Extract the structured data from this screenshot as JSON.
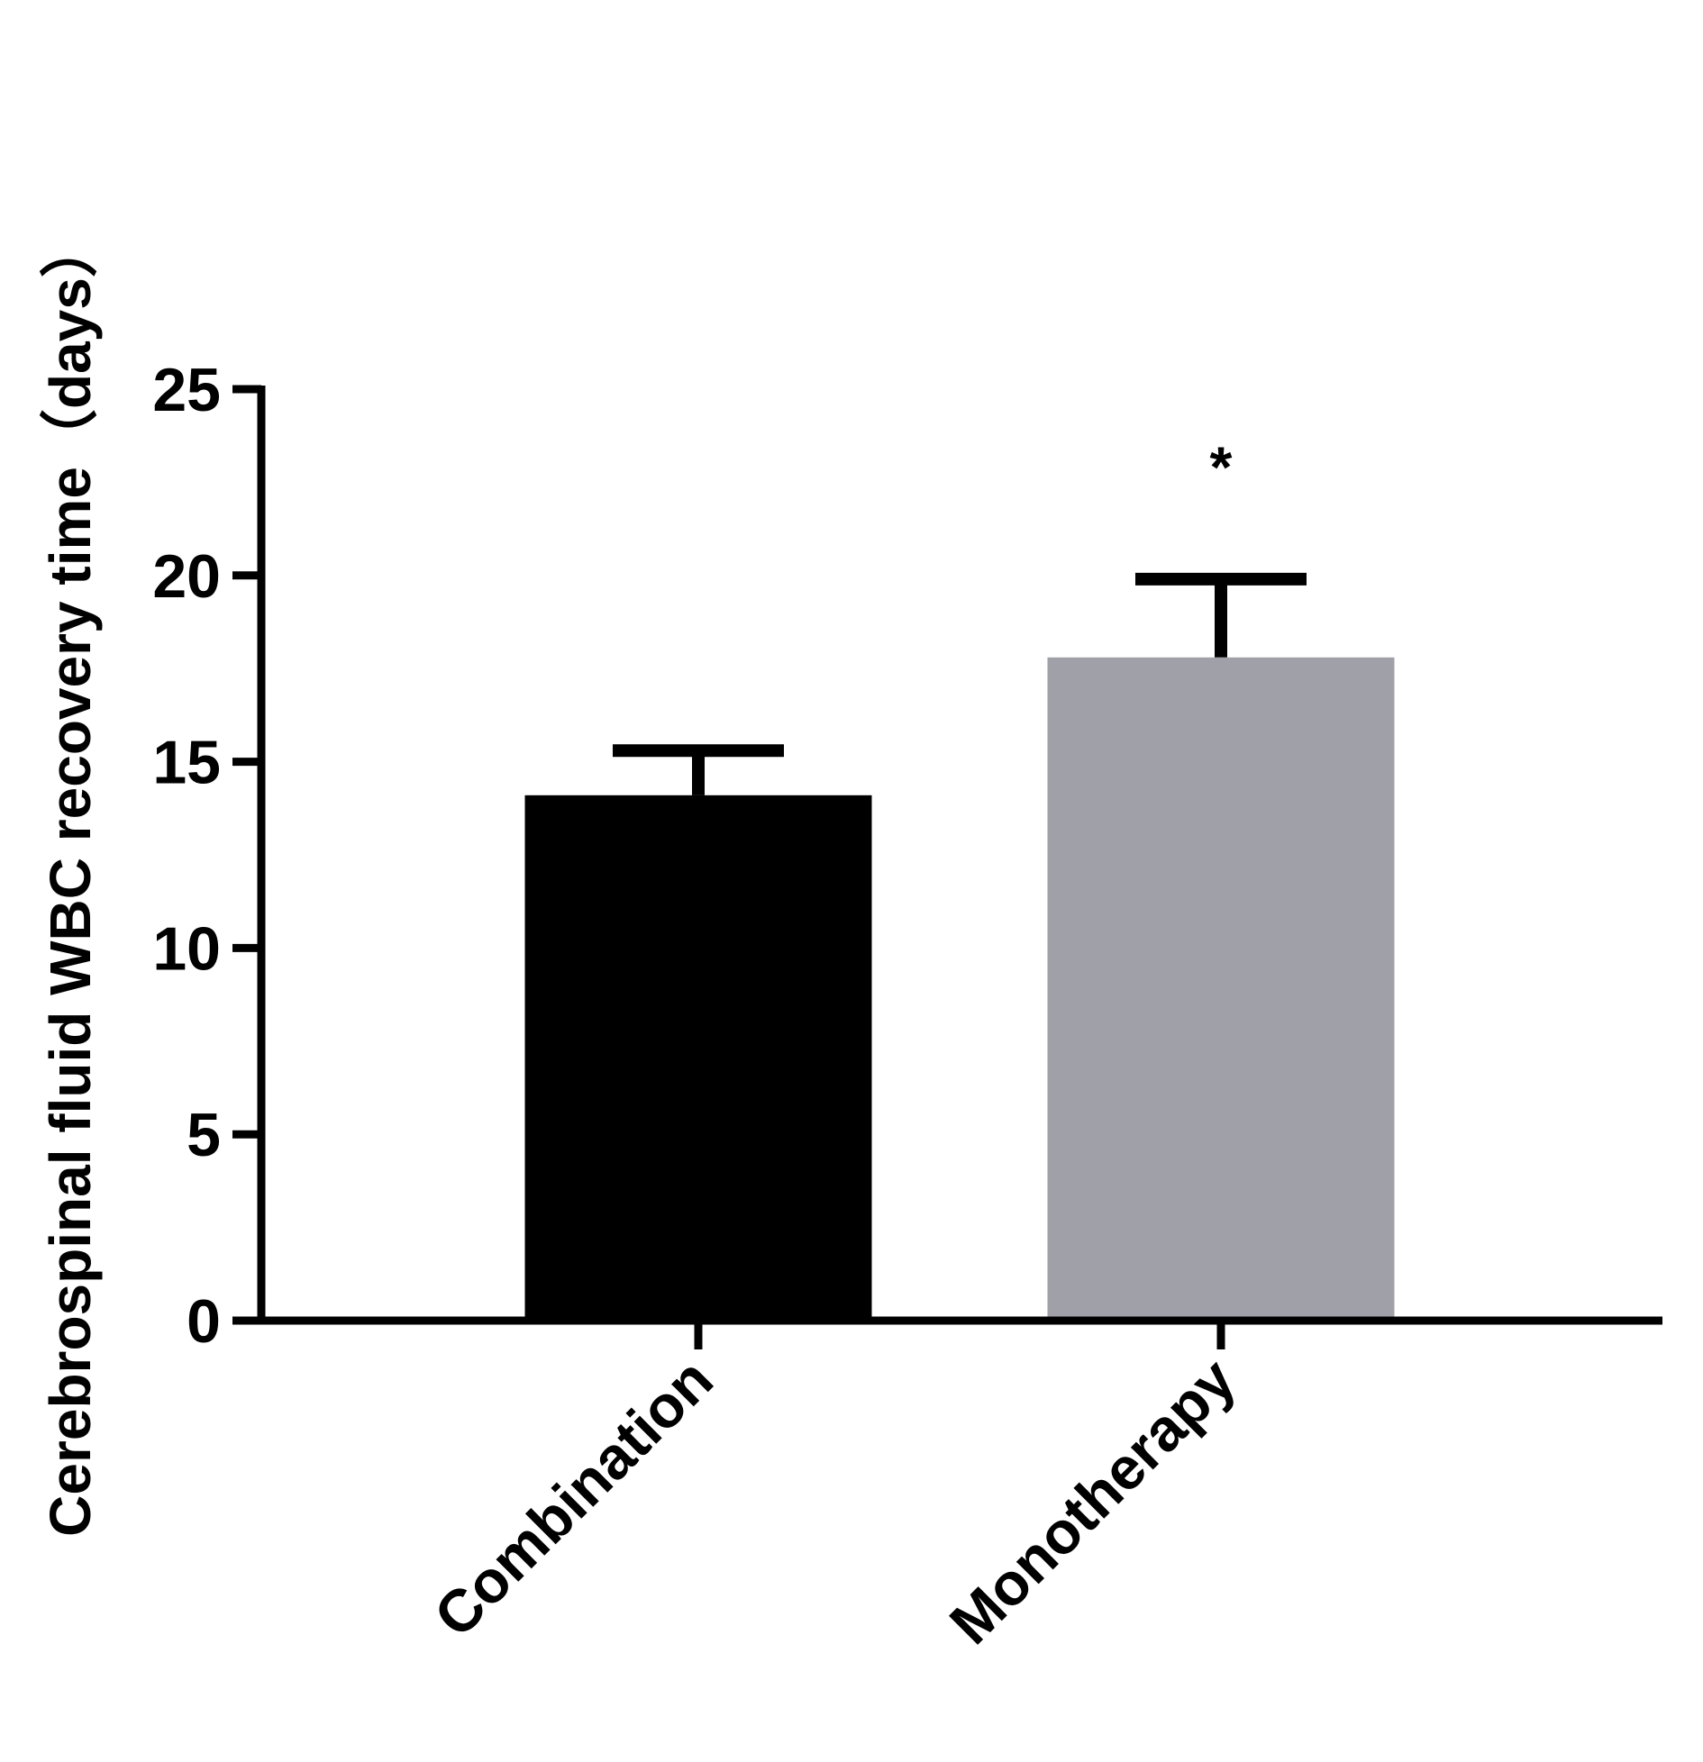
{
  "chart_data": {
    "type": "bar",
    "title": "",
    "xlabel": "",
    "ylabel": "Cerebrospinal fluid WBC recovery time（days）",
    "categories": [
      "Combination",
      "Monotherapy"
    ],
    "values": [
      14.1,
      17.8
    ],
    "error_upper": [
      15.3,
      19.9
    ],
    "bar_colors": [
      "#000000",
      "#a0a0a8"
    ],
    "ylim": [
      0,
      25
    ],
    "yticks": [
      0,
      5,
      10,
      15,
      20,
      25
    ],
    "annotations": [
      {
        "category": "Monotherapy",
        "text": "*",
        "y": 23.1
      }
    ],
    "grid": false,
    "legend": "none"
  }
}
